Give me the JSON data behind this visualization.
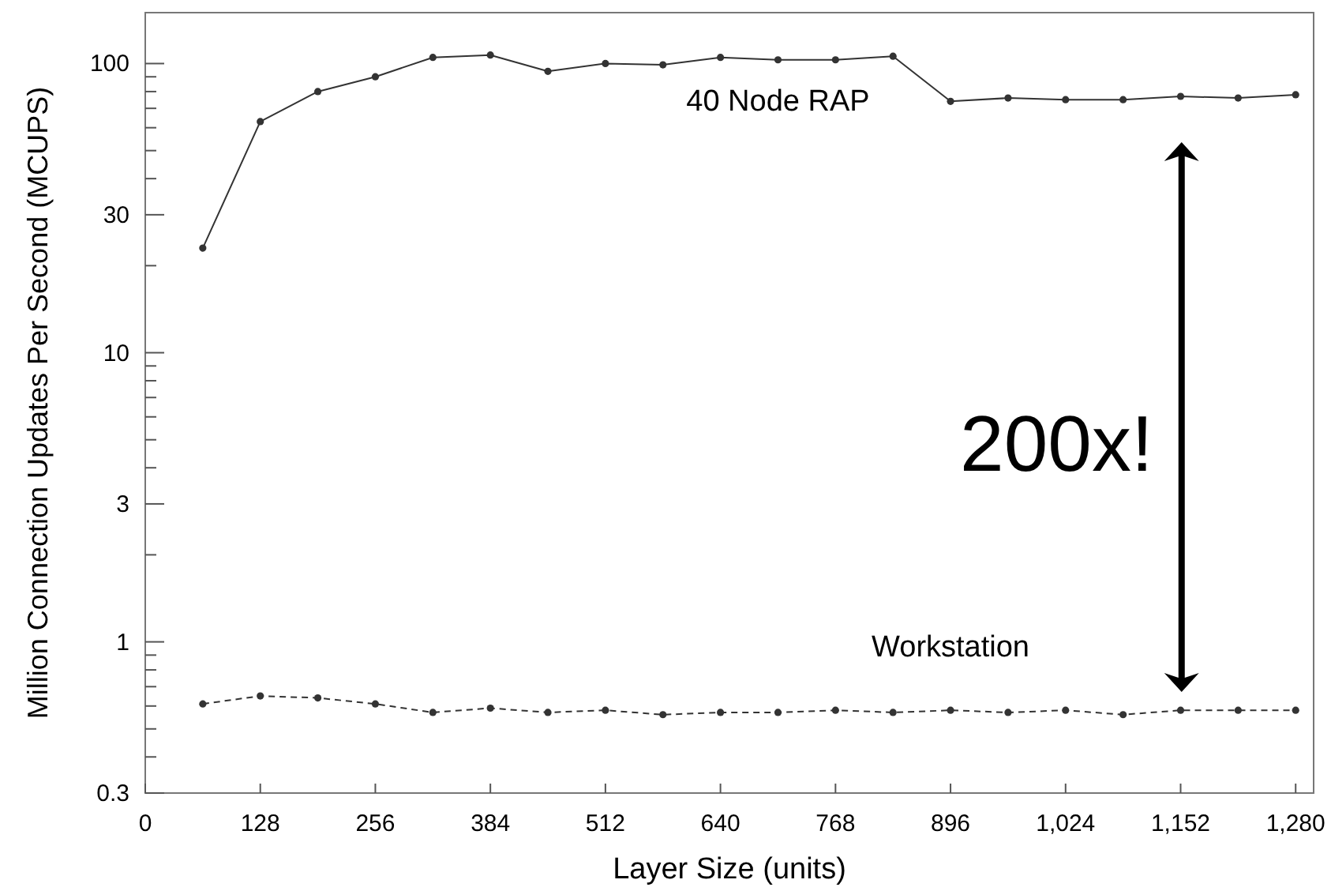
{
  "chart_data": {
    "type": "line",
    "xlabel": "Layer Size (units)",
    "ylabel": "Million Connection Updates Per Second (MCUPS)",
    "x": [
      64,
      128,
      192,
      256,
      320,
      384,
      448,
      512,
      576,
      640,
      704,
      768,
      832,
      896,
      960,
      1024,
      1088,
      1152,
      1216,
      1280
    ],
    "series": [
      {
        "name": "40 Node RAP",
        "color": "#333333",
        "line_style": "solid",
        "values": [
          23,
          63,
          80,
          90,
          105,
          107,
          94,
          100,
          99,
          105,
          103,
          103,
          106,
          74,
          76,
          75,
          75,
          77,
          76,
          78
        ]
      },
      {
        "name": "Workstation",
        "color": "#333333",
        "line_style": "dashed",
        "values": [
          0.61,
          0.65,
          0.64,
          0.61,
          0.57,
          0.59,
          0.57,
          0.58,
          0.56,
          0.57,
          0.57,
          0.58,
          0.57,
          0.58,
          0.57,
          0.58,
          0.56,
          0.58,
          0.58,
          0.58
        ]
      }
    ],
    "log": "y",
    "marker": "circle",
    "grid": false,
    "xlim": [
      0,
      1300
    ],
    "xticks": [
      0,
      128,
      256,
      384,
      512,
      640,
      768,
      896,
      {
        "value": 1024,
        "label": "1,024"
      },
      {
        "value": 1152,
        "label": "1,152"
      },
      {
        "value": 1280,
        "label": "1,280"
      }
    ],
    "ylim": [
      0.3,
      150
    ],
    "yticks": [
      0.3,
      {
        "value": 0.4,
        "label": null
      },
      {
        "value": 0.5,
        "label": null
      },
      {
        "value": 0.6,
        "label": null
      },
      {
        "value": 0.7,
        "label": null
      },
      {
        "value": 0.8,
        "label": null
      },
      {
        "value": 0.9,
        "label": null
      },
      1,
      {
        "value": 2,
        "label": null
      },
      3,
      {
        "value": 4,
        "label": null
      },
      {
        "value": 5,
        "label": null
      },
      {
        "value": 6,
        "label": null
      },
      {
        "value": 7,
        "label": null
      },
      {
        "value": 8,
        "label": null
      },
      {
        "value": 9,
        "label": null
      },
      10,
      {
        "value": 20,
        "label": null
      },
      30,
      {
        "value": 40,
        "label": null
      },
      {
        "value": 50,
        "label": null
      },
      {
        "value": 60,
        "label": null
      },
      {
        "value": 70,
        "label": null
      },
      {
        "value": 80,
        "label": null
      },
      {
        "value": 90,
        "label": null
      },
      100
    ],
    "annotations": [
      "200x!"
    ]
  }
}
